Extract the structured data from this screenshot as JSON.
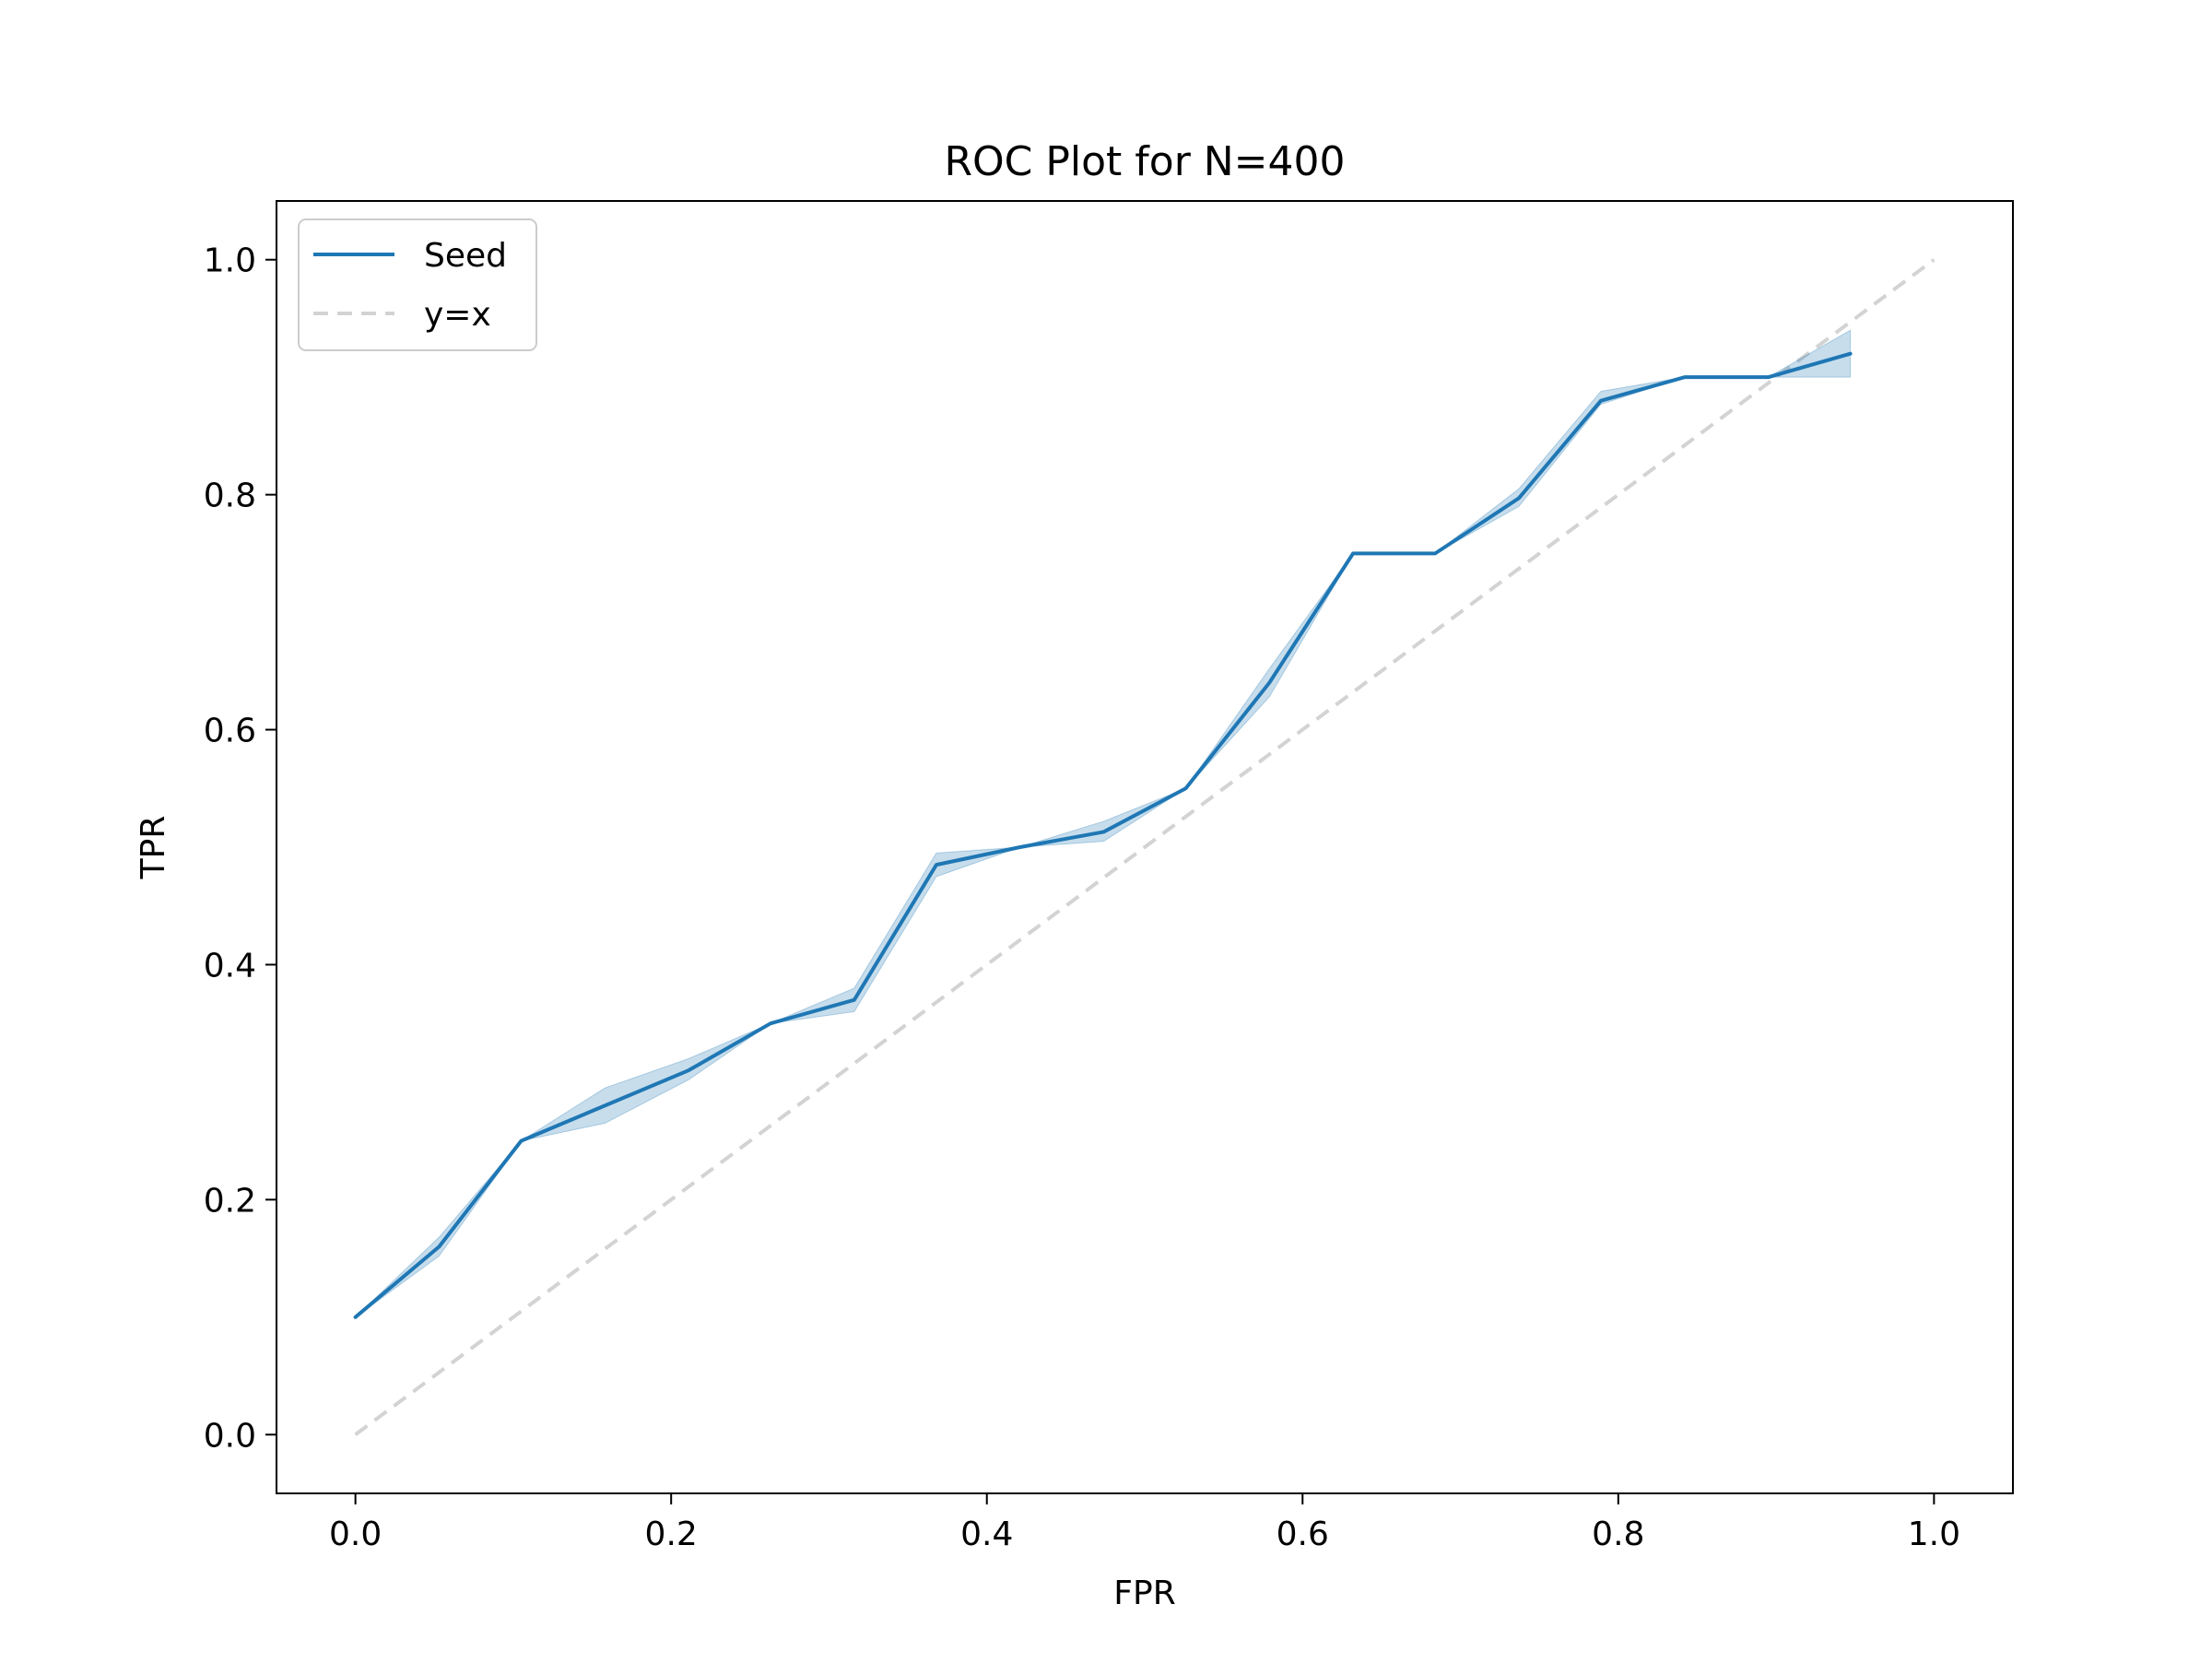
{
  "chart_data": {
    "type": "line",
    "title": "ROC Plot for N=400",
    "xlabel": "FPR",
    "ylabel": "TPR",
    "xlim": [
      -0.05,
      1.05
    ],
    "ylim": [
      -0.05,
      1.05
    ],
    "xticks": [
      0.0,
      0.2,
      0.4,
      0.6,
      0.8,
      1.0
    ],
    "yticks": [
      0.0,
      0.2,
      0.4,
      0.6,
      0.8,
      1.0
    ],
    "xtick_labels": [
      "0.0",
      "0.2",
      "0.4",
      "0.6",
      "0.8",
      "1.0"
    ],
    "ytick_labels": [
      "0.0",
      "0.2",
      "0.4",
      "0.6",
      "0.8",
      "1.0"
    ],
    "grid": false,
    "legend_position": "top-left",
    "series": [
      {
        "name": "Seed",
        "color": "#1f77b4",
        "style": "solid",
        "x": [
          0.0,
          0.053,
          0.105,
          0.158,
          0.211,
          0.263,
          0.316,
          0.368,
          0.421,
          0.474,
          0.526,
          0.579,
          0.632,
          0.684,
          0.737,
          0.789,
          0.842,
          0.895,
          0.947
        ],
        "y": [
          0.1,
          0.16,
          0.25,
          0.28,
          0.31,
          0.35,
          0.37,
          0.485,
          0.5,
          0.513,
          0.55,
          0.64,
          0.75,
          0.75,
          0.797,
          0.88,
          0.9,
          0.9,
          0.92
        ],
        "band_lower": [
          0.1,
          0.152,
          0.25,
          0.265,
          0.302,
          0.35,
          0.36,
          0.475,
          0.5,
          0.505,
          0.55,
          0.628,
          0.75,
          0.75,
          0.79,
          0.877,
          0.9,
          0.9,
          0.9
        ],
        "band_upper": [
          0.1,
          0.168,
          0.25,
          0.295,
          0.32,
          0.35,
          0.38,
          0.495,
          0.5,
          0.522,
          0.55,
          0.652,
          0.75,
          0.75,
          0.805,
          0.888,
          0.9,
          0.9,
          0.94
        ]
      },
      {
        "name": "y=x",
        "color": "#d3d3d3",
        "style": "dashed",
        "x": [
          0.0,
          1.0
        ],
        "y": [
          0.0,
          1.0
        ]
      }
    ]
  }
}
